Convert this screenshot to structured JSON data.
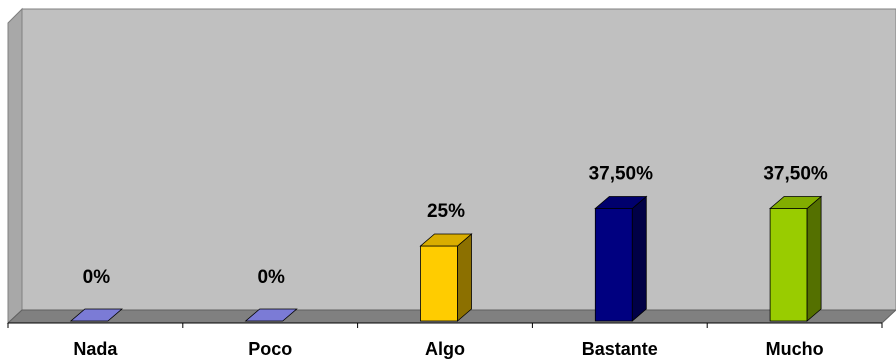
{
  "chart_data": {
    "type": "bar",
    "three_d": true,
    "categories": [
      "Nada",
      "Poco",
      "Algo",
      "Bastante",
      "Mucho"
    ],
    "values": [
      0,
      0,
      25,
      37.5,
      37.5
    ],
    "data_labels": [
      "0%",
      "0%",
      "25%",
      "37,50%",
      "37,50%"
    ],
    "colors": [
      "#7b7bd6",
      "#7b7bd6",
      "#ffcc00",
      "#000080",
      "#99cc00"
    ],
    "ylim": [
      0,
      100
    ],
    "grid": false,
    "legend": "none",
    "title": "",
    "xlabel": "",
    "ylabel": "",
    "plot_background": "#c0c0c0"
  }
}
